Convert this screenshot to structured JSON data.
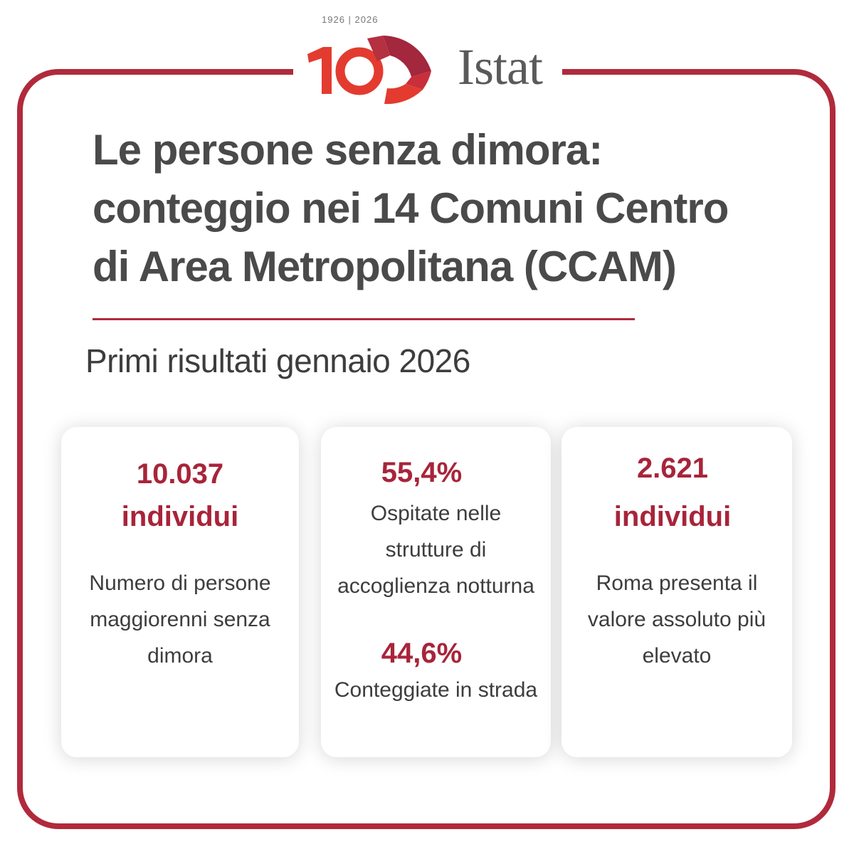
{
  "logo": {
    "years": "1926 | 2026",
    "brand": "Istat",
    "colors": {
      "dark_red": "#a3273d",
      "red": "#e33b2f"
    }
  },
  "colors": {
    "accent": "#b02a3c",
    "value": "#a8243a",
    "text": "#4a4a4a"
  },
  "title": {
    "line1": "Le persone senza dimora:",
    "line2": "conteggio nei 14 Comuni Centro",
    "line3": "di Area Metropolitana (CCAM)"
  },
  "subtitle": "Primi risultati gennaio 2026",
  "cards": [
    {
      "value_line1": "10.037",
      "value_line2": "individui",
      "desc_lines": [
        "Numero di persone",
        "maggiorenni senza",
        "dimora"
      ]
    },
    {
      "value1": "55,4%",
      "desc1_lines": [
        "Ospitate nelle",
        "strutture di",
        "accoglienza notturna"
      ],
      "value2": "44,6%",
      "desc2": "Conteggiate in strada"
    },
    {
      "value_line1": "2.621",
      "value_line2": "individui",
      "desc_lines": [
        "Roma presenta il",
        "valore assoluto più",
        "elevato"
      ]
    }
  ]
}
